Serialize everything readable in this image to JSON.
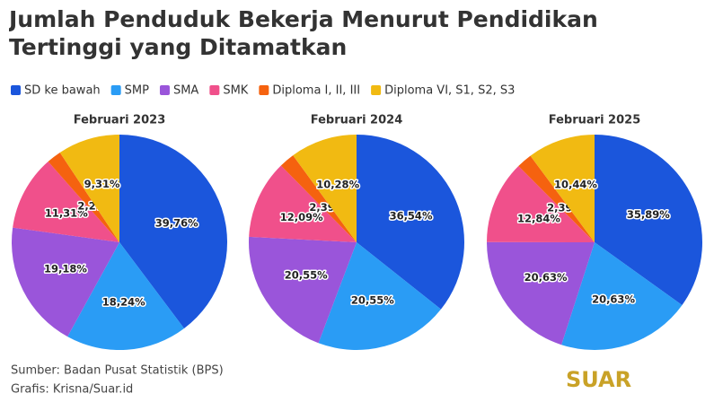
{
  "title": "Jumlah Penduduk Bekerja Menurut Pendidikan Tertinggi yang Ditamatkan",
  "source": "Sumber: Badan Pusat Statistik (BPS)",
  "credit": "Grafis: Krisna/Suar.id",
  "logo": "SUAR",
  "chart_data": [
    {
      "type": "pie",
      "title": "Februari 2023",
      "categories": [
        "SD ke bawah",
        "SMP",
        "SMA",
        "SMK",
        "Diploma I, II, III",
        "Diploma VI, S1, S2, S3"
      ],
      "values": [
        39.76,
        18.24,
        19.18,
        11.31,
        2.2,
        9.31
      ],
      "value_labels": [
        "39,76%",
        "18,24%",
        "19,18%",
        "11,31%",
        "2,2%",
        "9,31%"
      ],
      "colors": [
        "#1b56dc",
        "#2a9cf5",
        "#9a55da",
        "#f0508b",
        "#f5620f",
        "#f1ba12"
      ]
    },
    {
      "type": "pie",
      "title": "Februari 2024",
      "categories": [
        "SD ke bawah",
        "SMP",
        "SMA",
        "SMK",
        "Diploma I, II, III",
        "Diploma VI, S1, S2, S3"
      ],
      "values": [
        36.54,
        20.55,
        20.55,
        12.09,
        2.39,
        10.28
      ],
      "value_labels": [
        "36,54%",
        "20,55%",
        "20,55%",
        "12,09%",
        "2,39%",
        "10,28%"
      ],
      "colors": [
        "#1b56dc",
        "#2a9cf5",
        "#9a55da",
        "#f0508b",
        "#f5620f",
        "#f1ba12"
      ]
    },
    {
      "type": "pie",
      "title": "Februari 2025",
      "categories": [
        "SD ke bawah",
        "SMP",
        "SMA",
        "SMK",
        "Diploma I, II, III",
        "Diploma VI, S1, S2, S3"
      ],
      "values": [
        35.89,
        20.63,
        20.63,
        12.84,
        2.39,
        10.44
      ],
      "value_labels": [
        "35,89%",
        "20,63%",
        "20,63%",
        "12,84%",
        "2,39%",
        "10,44%"
      ],
      "colors": [
        "#1b56dc",
        "#2a9cf5",
        "#9a55da",
        "#f0508b",
        "#f5620f",
        "#f1ba12"
      ]
    }
  ]
}
